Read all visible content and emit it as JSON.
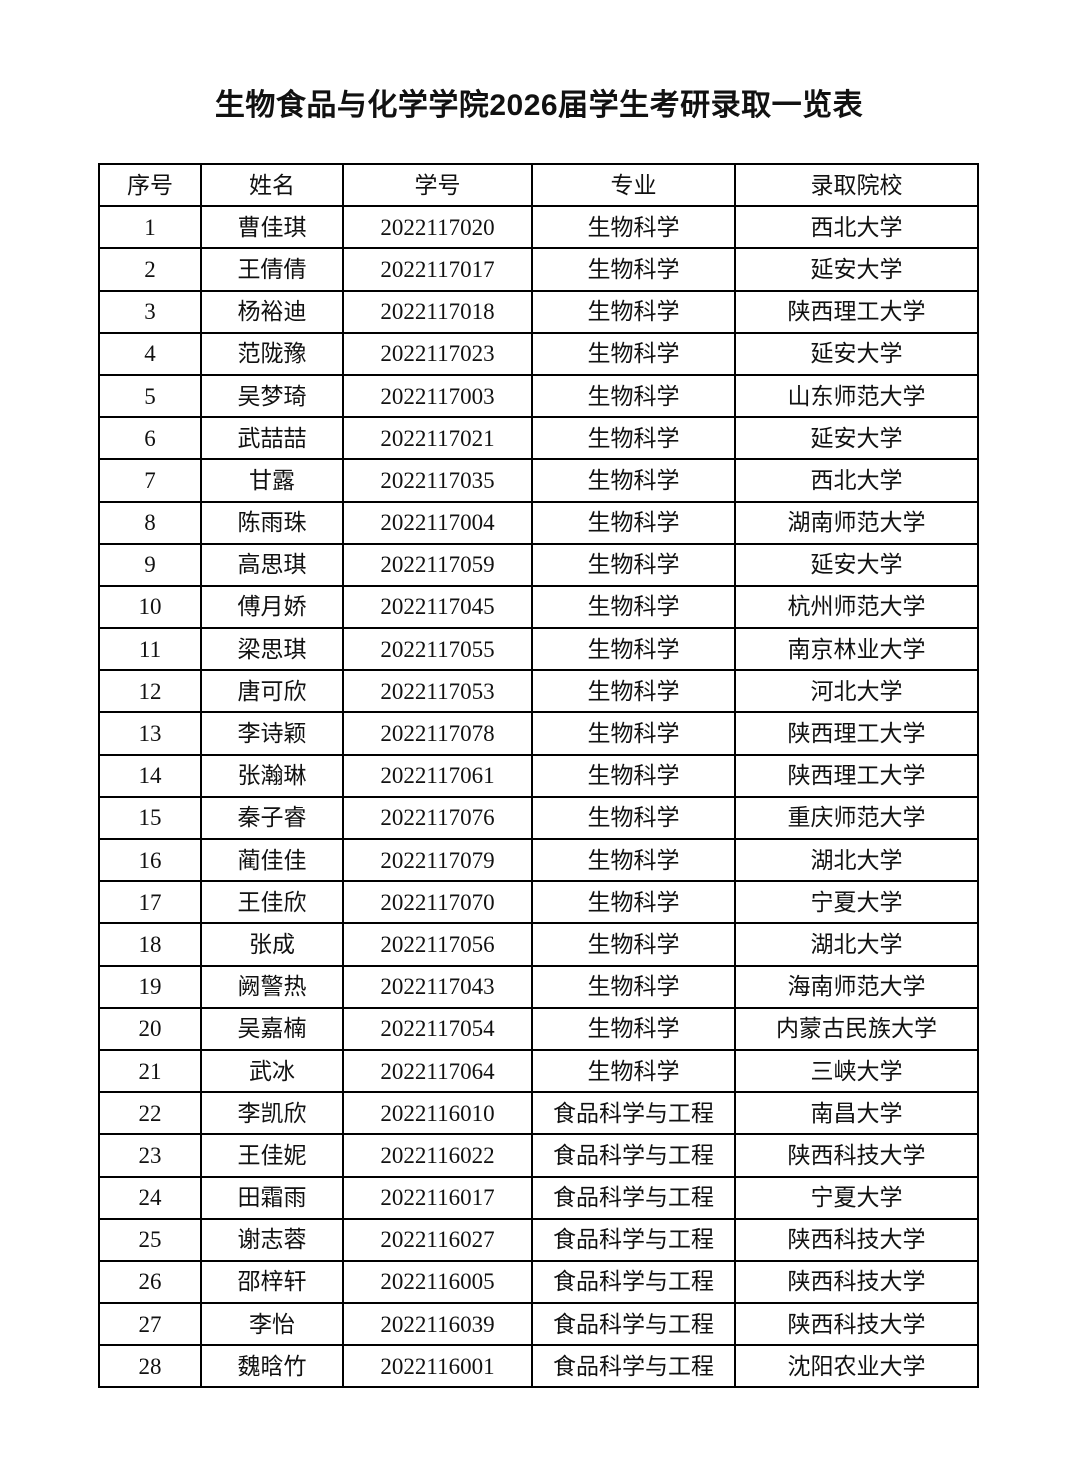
{
  "title": "生物食品与化学学院2026届学生考研录取一览表",
  "table": {
    "headers": [
      "序号",
      "姓名",
      "学号",
      "专业",
      "录取院校"
    ],
    "rows": [
      [
        "1",
        "曹佳琪",
        "2022117020",
        "生物科学",
        "西北大学"
      ],
      [
        "2",
        "王倩倩",
        "2022117017",
        "生物科学",
        "延安大学"
      ],
      [
        "3",
        "杨裕迪",
        "2022117018",
        "生物科学",
        "陕西理工大学"
      ],
      [
        "4",
        "范陇豫",
        "2022117023",
        "生物科学",
        "延安大学"
      ],
      [
        "5",
        "吴梦琦",
        "2022117003",
        "生物科学",
        "山东师范大学"
      ],
      [
        "6",
        "武喆喆",
        "2022117021",
        "生物科学",
        "延安大学"
      ],
      [
        "7",
        "甘露",
        "2022117035",
        "生物科学",
        "西北大学"
      ],
      [
        "8",
        "陈雨珠",
        "2022117004",
        "生物科学",
        "湖南师范大学"
      ],
      [
        "9",
        "高思琪",
        "2022117059",
        "生物科学",
        "延安大学"
      ],
      [
        "10",
        "傅月娇",
        "2022117045",
        "生物科学",
        "杭州师范大学"
      ],
      [
        "11",
        "梁思琪",
        "2022117055",
        "生物科学",
        "南京林业大学"
      ],
      [
        "12",
        "唐可欣",
        "2022117053",
        "生物科学",
        "河北大学"
      ],
      [
        "13",
        "李诗颖",
        "2022117078",
        "生物科学",
        "陕西理工大学"
      ],
      [
        "14",
        "张瀚琳",
        "2022117061",
        "生物科学",
        "陕西理工大学"
      ],
      [
        "15",
        "秦子睿",
        "2022117076",
        "生物科学",
        "重庆师范大学"
      ],
      [
        "16",
        "蔺佳佳",
        "2022117079",
        "生物科学",
        "湖北大学"
      ],
      [
        "17",
        "王佳欣",
        "2022117070",
        "生物科学",
        "宁夏大学"
      ],
      [
        "18",
        "张成",
        "2022117056",
        "生物科学",
        "湖北大学"
      ],
      [
        "19",
        "阙警热",
        "2022117043",
        "生物科学",
        "海南师范大学"
      ],
      [
        "20",
        "吴嘉楠",
        "2022117054",
        "生物科学",
        "内蒙古民族大学"
      ],
      [
        "21",
        "武冰",
        "2022117064",
        "生物科学",
        "三峡大学"
      ],
      [
        "22",
        "李凯欣",
        "2022116010",
        "食品科学与工程",
        "南昌大学"
      ],
      [
        "23",
        "王佳妮",
        "2022116022",
        "食品科学与工程",
        "陕西科技大学"
      ],
      [
        "24",
        "田霜雨",
        "2022116017",
        "食品科学与工程",
        "宁夏大学"
      ],
      [
        "25",
        "谢志蓉",
        "2022116027",
        "食品科学与工程",
        "陕西科技大学"
      ],
      [
        "26",
        "邵梓轩",
        "2022116005",
        "食品科学与工程",
        "陕西科技大学"
      ],
      [
        "27",
        "李怡",
        "2022116039",
        "食品科学与工程",
        "陕西科技大学"
      ],
      [
        "28",
        "魏晗竹",
        "2022116001",
        "食品科学与工程",
        "沈阳农业大学"
      ]
    ]
  }
}
